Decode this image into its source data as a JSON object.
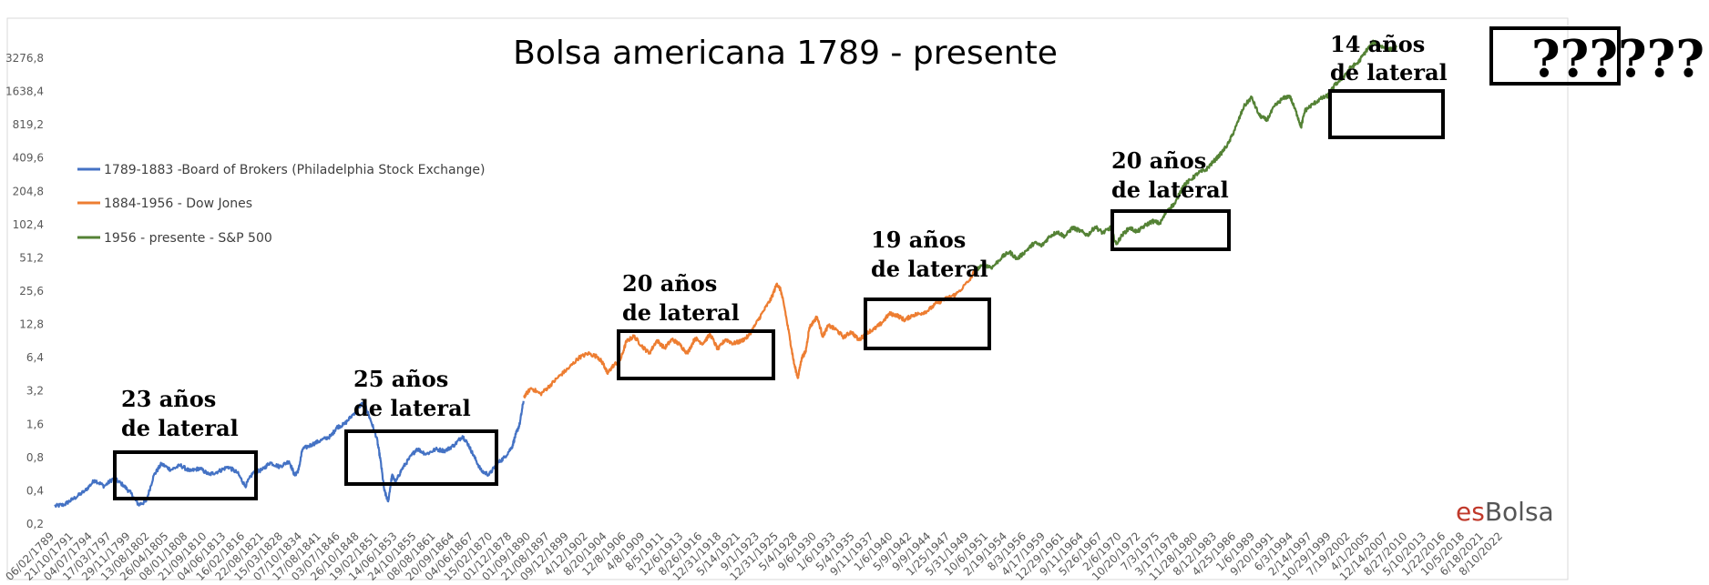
{
  "chart_data": {
    "type": "line",
    "title": "Bolsa americana 1789 - presente",
    "yscale": "log",
    "ylim": [
      0.2,
      3276.8
    ],
    "y_ticks": [
      "0,2",
      "0,4",
      "0,8",
      "1,6",
      "3,2",
      "6,4",
      "12,8",
      "25,6",
      "51,2",
      "102,4",
      "204,8",
      "409,6",
      "819,2",
      "1638,4",
      "3276,8"
    ],
    "x_ticks": [
      "06/02/1789",
      "21/10/1791",
      "04/07/1794",
      "17/03/1797",
      "29/11/1799",
      "13/08/1802",
      "26/04/1805",
      "08/01/1808",
      "21/09/1810",
      "04/06/1813",
      "16/02/1816",
      "22/08/1821",
      "15/03/1828",
      "07/10/1834",
      "17/08/1841",
      "03/07/1846",
      "26/10/1848",
      "19/02/1851",
      "14/06/1853",
      "24/10/1855",
      "08/08/1861",
      "20/09/1864",
      "04/06/1867",
      "15/02/1870",
      "01/12/1878",
      "01/09/1890",
      "21/08/1897",
      "09/12/1899",
      "4/12/1902",
      "8/20/1904",
      "12/8/1906",
      "4/8/1909",
      "8/5/1911",
      "12/6/1913",
      "8/26/1916",
      "12/31/1918",
      "5/14/1921",
      "9/1/1923",
      "12/31/1925",
      "5/4/1928",
      "9/6/1930",
      "1/6/1933",
      "5/4/1935",
      "9/11/1937",
      "1/6/1940",
      "5/9/1942",
      "9/9/1944",
      "1/25/1947",
      "5/31/1949",
      "10/6/1951",
      "2/19/1954",
      "8/3/1956",
      "4/17/1959",
      "12/29/1961",
      "9/11/1964",
      "5/26/1967",
      "2/6/1970",
      "10/20/1972",
      "7/3/1975",
      "3/17/1978",
      "11/28/1980",
      "8/12/1983",
      "4/25/1986",
      "1/6/1989",
      "9/20/1991",
      "6/3/1994",
      "2/14/1997",
      "10/29/1999",
      "7/19/2002",
      "4/1/2005",
      "12/14/2007",
      "8/27/2010",
      "5/10/2013",
      "1/22/2016",
      "10/5/2018",
      "6/18/2021",
      "8/10/2022"
    ],
    "legend_position": "left",
    "series": [
      {
        "name": "1789-1883 -Board of Brokers (Philadelphia Stock Exchange)",
        "color": "#4472C4",
        "x_range": [
          0,
          24.6
        ],
        "anchors": [
          [
            0,
            0.29
          ],
          [
            0.5,
            0.3
          ],
          [
            1,
            0.34
          ],
          [
            1.6,
            0.4
          ],
          [
            2.1,
            0.5
          ],
          [
            2.6,
            0.44
          ],
          [
            3.1,
            0.52
          ],
          [
            3.6,
            0.45
          ],
          [
            4.0,
            0.38
          ],
          [
            4.4,
            0.3
          ],
          [
            4.8,
            0.32
          ],
          [
            5.2,
            0.55
          ],
          [
            5.6,
            0.7
          ],
          [
            6.1,
            0.62
          ],
          [
            6.6,
            0.68
          ],
          [
            7.1,
            0.6
          ],
          [
            7.6,
            0.64
          ],
          [
            8.1,
            0.56
          ],
          [
            8.6,
            0.6
          ],
          [
            9.1,
            0.66
          ],
          [
            9.6,
            0.58
          ],
          [
            10.0,
            0.44
          ],
          [
            10.4,
            0.58
          ],
          [
            10.9,
            0.62
          ],
          [
            11.3,
            0.72
          ],
          [
            11.8,
            0.66
          ],
          [
            12.3,
            0.74
          ],
          [
            12.6,
            0.55
          ],
          [
            12.8,
            0.62
          ],
          [
            13.0,
            0.95
          ],
          [
            13.5,
            1.05
          ],
          [
            14.0,
            1.15
          ],
          [
            14.5,
            1.25
          ],
          [
            14.8,
            1.5
          ],
          [
            15.2,
            1.6
          ],
          [
            15.7,
            2.0
          ],
          [
            16.1,
            2.45
          ],
          [
            16.3,
            2.35
          ],
          [
            16.6,
            1.7
          ],
          [
            16.9,
            1.2
          ],
          [
            17.1,
            0.75
          ],
          [
            17.3,
            0.4
          ],
          [
            17.5,
            0.32
          ],
          [
            17.7,
            0.55
          ],
          [
            17.9,
            0.48
          ],
          [
            18.2,
            0.62
          ],
          [
            18.6,
            0.78
          ],
          [
            19.0,
            0.96
          ],
          [
            19.5,
            0.86
          ],
          [
            20.0,
            0.95
          ],
          [
            20.5,
            0.92
          ],
          [
            21.0,
            1.05
          ],
          [
            21.4,
            1.25
          ],
          [
            21.7,
            1.05
          ],
          [
            22.0,
            0.82
          ],
          [
            22.4,
            0.6
          ],
          [
            22.8,
            0.56
          ],
          [
            23.2,
            0.7
          ],
          [
            23.6,
            0.8
          ],
          [
            24.0,
            1.0
          ],
          [
            24.2,
            1.3
          ],
          [
            24.4,
            1.6
          ],
          [
            24.6,
            2.6
          ]
        ]
      },
      {
        "name": "1884-1956 - Dow Jones",
        "color": "#ED7D31",
        "x_range": [
          24.6,
          53.5
        ],
        "anchors": [
          [
            24.6,
            2.8
          ],
          [
            25.0,
            3.4
          ],
          [
            25.5,
            3.0
          ],
          [
            26.0,
            3.6
          ],
          [
            26.5,
            4.4
          ],
          [
            27.0,
            5.2
          ],
          [
            27.5,
            6.4
          ],
          [
            28.0,
            7.0
          ],
          [
            28.5,
            6.5
          ],
          [
            28.8,
            5.6
          ],
          [
            29.0,
            4.6
          ],
          [
            29.3,
            5.4
          ],
          [
            29.7,
            6.2
          ],
          [
            30.0,
            9.0
          ],
          [
            30.4,
            10.0
          ],
          [
            30.8,
            8.2
          ],
          [
            31.2,
            7.0
          ],
          [
            31.6,
            9.2
          ],
          [
            32.0,
            7.8
          ],
          [
            32.4,
            9.4
          ],
          [
            32.8,
            8.4
          ],
          [
            33.2,
            7.0
          ],
          [
            33.6,
            9.6
          ],
          [
            34.0,
            8.6
          ],
          [
            34.4,
            10.4
          ],
          [
            34.8,
            7.6
          ],
          [
            35.2,
            9.4
          ],
          [
            35.6,
            8.6
          ],
          [
            36.0,
            9.0
          ],
          [
            36.4,
            10.0
          ],
          [
            36.8,
            13.0
          ],
          [
            37.2,
            17.0
          ],
          [
            37.6,
            22.0
          ],
          [
            37.9,
            30.0
          ],
          [
            38.1,
            26.0
          ],
          [
            38.3,
            18.0
          ],
          [
            38.6,
            9.0
          ],
          [
            38.8,
            5.6
          ],
          [
            39.0,
            4.2
          ],
          [
            39.2,
            6.4
          ],
          [
            39.4,
            7.2
          ],
          [
            39.6,
            12.0
          ],
          [
            40.0,
            15.0
          ],
          [
            40.3,
            10.0
          ],
          [
            40.6,
            12.5
          ],
          [
            41.0,
            11.5
          ],
          [
            41.4,
            9.8
          ],
          [
            41.8,
            11.0
          ],
          [
            42.2,
            9.2
          ],
          [
            42.6,
            10.8
          ],
          [
            43.0,
            11.6
          ],
          [
            43.4,
            13.2
          ],
          [
            43.8,
            16.0
          ],
          [
            44.2,
            15.5
          ],
          [
            44.6,
            14.0
          ],
          [
            45.0,
            15.5
          ],
          [
            45.4,
            16.0
          ],
          [
            45.8,
            17.0
          ],
          [
            46.3,
            20.0
          ],
          [
            46.8,
            22.0
          ],
          [
            47.3,
            24.0
          ],
          [
            48.0,
            32.0
          ],
          [
            48.3,
            40.0
          ]
        ]
      },
      {
        "name": "1956 - presente - S&P 500",
        "color": "#548235",
        "x_range": [
          48.3,
          76.0
        ],
        "anchors": [
          [
            48.3,
            40.0
          ],
          [
            48.8,
            44.0
          ],
          [
            49.2,
            42.0
          ],
          [
            49.7,
            52.0
          ],
          [
            50.1,
            58.0
          ],
          [
            50.5,
            50.0
          ],
          [
            51.0,
            60.0
          ],
          [
            51.4,
            70.0
          ],
          [
            51.8,
            66.0
          ],
          [
            52.2,
            80.0
          ],
          [
            52.6,
            88.0
          ],
          [
            53.0,
            80.0
          ],
          [
            53.4,
            96.0
          ],
          [
            53.8,
            90.0
          ],
          [
            54.2,
            82.0
          ],
          [
            54.6,
            98.0
          ],
          [
            55.0,
            86.0
          ],
          [
            55.4,
            96.0
          ],
          [
            55.7,
            68.0
          ],
          [
            56.0,
            82.0
          ],
          [
            56.4,
            96.0
          ],
          [
            56.8,
            88.0
          ],
          [
            57.2,
            100.0
          ],
          [
            57.6,
            110.0
          ],
          [
            58.0,
            105.0
          ],
          [
            58.4,
            140.0
          ],
          [
            58.8,
            160.0
          ],
          [
            59.2,
            230.0
          ],
          [
            59.6,
            260.0
          ],
          [
            60.0,
            300.0
          ],
          [
            60.4,
            320.0
          ],
          [
            60.8,
            380.0
          ],
          [
            61.2,
            450.0
          ],
          [
            61.6,
            560.0
          ],
          [
            62.0,
            800.0
          ],
          [
            62.4,
            1200.0
          ],
          [
            62.8,
            1450.0
          ],
          [
            63.2,
            1000.0
          ],
          [
            63.6,
            900.0
          ],
          [
            64.0,
            1200.0
          ],
          [
            64.4,
            1400.0
          ],
          [
            64.8,
            1500.0
          ],
          [
            65.2,
            1000.0
          ],
          [
            65.4,
            780.0
          ],
          [
            65.6,
            1100.0
          ],
          [
            66.0,
            1250.0
          ],
          [
            66.4,
            1400.0
          ],
          [
            66.8,
            1500.0
          ],
          [
            67.2,
            1900.0
          ],
          [
            67.6,
            2200.0
          ],
          [
            68.0,
            2700.0
          ],
          [
            68.4,
            3000.0
          ],
          [
            68.8,
            3800.0
          ],
          [
            69.2,
            4600.0
          ],
          [
            69.6,
            4200.0
          ],
          [
            70.0,
            3900.0
          ],
          [
            70.4,
            4100.0
          ]
        ]
      }
    ]
  },
  "annotations": [
    {
      "line1": "23 años",
      "line2": "de lateral"
    },
    {
      "line1": "25 años",
      "line2": "de lateral"
    },
    {
      "line1": "20 años",
      "line2": "de lateral"
    },
    {
      "line1": "19 años",
      "line2": "de lateral"
    },
    {
      "line1": "20 años",
      "line2": "de lateral"
    },
    {
      "line1": "14 años",
      "line2": "de lateral"
    }
  ],
  "question_marks": "??????",
  "brand": {
    "part1": "es",
    "part2": "Bolsa"
  }
}
